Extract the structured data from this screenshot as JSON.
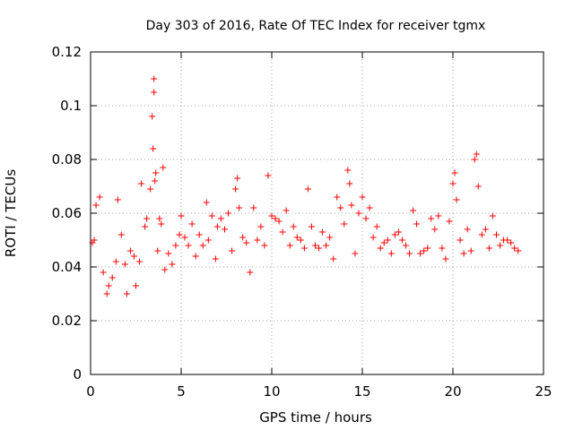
{
  "chart_data": {
    "type": "scatter",
    "title": "Day 303 of 2016, Rate Of TEC Index for receiver tgmx",
    "xlabel": "GPS time / hours",
    "ylabel": "ROTI / TECUs",
    "xlim": [
      0,
      25
    ],
    "ylim": [
      0,
      0.12
    ],
    "x_ticks": [
      0,
      5,
      10,
      15,
      20,
      25
    ],
    "x_tick_labels": [
      "0",
      "5",
      "10",
      "15",
      "20",
      "25"
    ],
    "y_ticks": [
      0,
      0.02,
      0.04,
      0.06,
      0.08,
      0.1,
      0.12
    ],
    "y_tick_labels": [
      "0",
      "0.02",
      "0.04",
      "0.06",
      "0.08",
      "0.1",
      "0.12"
    ],
    "grid": true,
    "marker": "plus",
    "series": [
      {
        "name": "ROTI",
        "color": "#ff0000",
        "x": [
          0.1,
          0.2,
          0.3,
          0.5,
          0.7,
          0.9,
          1.0,
          1.2,
          1.4,
          1.5,
          1.7,
          1.9,
          2.0,
          2.2,
          2.4,
          2.5,
          2.7,
          2.8,
          3.0,
          3.1,
          3.3,
          3.4,
          3.45,
          3.5,
          3.5,
          3.55,
          3.6,
          3.7,
          3.8,
          3.9,
          4.0,
          4.1,
          4.3,
          4.5,
          4.7,
          4.9,
          5.0,
          5.2,
          5.4,
          5.6,
          5.8,
          6.0,
          6.2,
          6.4,
          6.5,
          6.7,
          6.9,
          7.0,
          7.2,
          7.4,
          7.6,
          7.8,
          8.0,
          8.1,
          8.2,
          8.4,
          8.6,
          8.8,
          9.0,
          9.2,
          9.4,
          9.6,
          9.8,
          10.0,
          10.2,
          10.4,
          10.6,
          10.8,
          11.0,
          11.2,
          11.4,
          11.6,
          11.8,
          12.0,
          12.2,
          12.4,
          12.6,
          12.8,
          13.0,
          13.2,
          13.4,
          13.6,
          13.8,
          14.0,
          14.2,
          14.3,
          14.4,
          14.6,
          14.8,
          15.0,
          15.2,
          15.4,
          15.6,
          15.8,
          16.0,
          16.2,
          16.4,
          16.6,
          16.8,
          17.0,
          17.2,
          17.4,
          17.6,
          17.8,
          18.0,
          18.2,
          18.4,
          18.6,
          18.8,
          19.0,
          19.2,
          19.4,
          19.6,
          19.8,
          20.0,
          20.1,
          20.2,
          20.4,
          20.6,
          20.8,
          21.0,
          21.2,
          21.3,
          21.4,
          21.6,
          21.8,
          22.0,
          22.2,
          22.4,
          22.6,
          22.8,
          23.0,
          23.2,
          23.4,
          23.6
        ],
        "y": [
          0.049,
          0.05,
          0.063,
          0.066,
          0.038,
          0.03,
          0.033,
          0.036,
          0.042,
          0.065,
          0.052,
          0.041,
          0.03,
          0.046,
          0.044,
          0.033,
          0.042,
          0.071,
          0.055,
          0.058,
          0.069,
          0.096,
          0.084,
          0.11,
          0.105,
          0.072,
          0.075,
          0.046,
          0.058,
          0.056,
          0.077,
          0.039,
          0.045,
          0.041,
          0.048,
          0.052,
          0.059,
          0.051,
          0.048,
          0.056,
          0.044,
          0.052,
          0.048,
          0.064,
          0.05,
          0.059,
          0.043,
          0.055,
          0.058,
          0.054,
          0.06,
          0.046,
          0.069,
          0.073,
          0.062,
          0.051,
          0.049,
          0.038,
          0.062,
          0.05,
          0.055,
          0.048,
          0.074,
          0.059,
          0.058,
          0.057,
          0.053,
          0.061,
          0.048,
          0.055,
          0.051,
          0.05,
          0.047,
          0.069,
          0.055,
          0.048,
          0.047,
          0.053,
          0.048,
          0.051,
          0.043,
          0.066,
          0.062,
          0.056,
          0.076,
          0.071,
          0.063,
          0.045,
          0.06,
          0.066,
          0.058,
          0.062,
          0.051,
          0.055,
          0.047,
          0.049,
          0.05,
          0.045,
          0.052,
          0.053,
          0.05,
          0.048,
          0.045,
          0.061,
          0.056,
          0.045,
          0.046,
          0.047,
          0.058,
          0.054,
          0.059,
          0.047,
          0.043,
          0.057,
          0.071,
          0.075,
          0.065,
          0.05,
          0.045,
          0.054,
          0.046,
          0.08,
          0.082,
          0.07,
          0.052,
          0.054,
          0.047,
          0.059,
          0.052,
          0.048,
          0.05,
          0.05,
          0.049,
          0.047,
          0.046
        ]
      }
    ]
  }
}
